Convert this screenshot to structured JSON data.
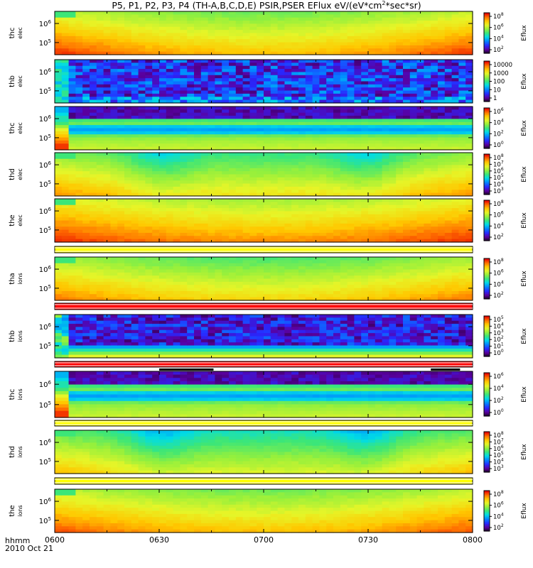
{
  "chart_data": {
    "type": "heatmap",
    "title": "P5, P1, P2, P3, P4 (TH-A,B,C,D,E) PSIR,PSER EFlux eV/(eV*cm",
    "title_sup": "2",
    "title_tail": "*sec*sr)",
    "x_axis": {
      "label_line1": "hhmm",
      "label_line2": "2010 Oct 21",
      "ticks": [
        "0600",
        "0630",
        "0700",
        "0730",
        "0800"
      ],
      "range": [
        "06:00",
        "08:00"
      ]
    },
    "colorbar_label": "Eflux",
    "panels": [
      {
        "id": "thd_elec_a",
        "name": "thc",
        "sub": "elec",
        "yticks": [
          "10^6",
          "10^5"
        ],
        "cb_ticks": [
          "10^8",
          "10^6",
          "10^4",
          "10^2"
        ],
        "pattern": "smooth",
        "base": 0.62,
        "edge_boost": 0.15
      },
      {
        "id": "thb_elec",
        "name": "thb",
        "sub": "elec",
        "yticks": [
          "10^6",
          "10^5"
        ],
        "cb_ticks": [
          "10000",
          "1000",
          "100",
          "10",
          "1"
        ],
        "pattern": "noise"
      },
      {
        "id": "thc_elec",
        "name": "thc",
        "sub": "elec",
        "yticks": [
          "10^6",
          "10^5"
        ],
        "cb_ticks": [
          "10^6",
          "10^4",
          "10^2",
          "10^0"
        ],
        "pattern": "bands"
      },
      {
        "id": "thd_elec",
        "name": "thd",
        "sub": "elec",
        "yticks": [
          "10^6",
          "10^5"
        ],
        "cb_ticks": [
          "10^8",
          "10^7",
          "10^6",
          "10^5",
          "10^4",
          "10^3"
        ],
        "pattern": "smooth",
        "base": 0.55,
        "edge_boost": 0.12,
        "green_patches": true
      },
      {
        "id": "the_elec",
        "name": "the",
        "sub": "elec",
        "yticks": [
          "10^6",
          "10^5"
        ],
        "cb_ticks": [
          "10^8",
          "10^6",
          "10^4",
          "10^2"
        ],
        "pattern": "smooth",
        "base": 0.68,
        "edge_boost": 0.1
      },
      {
        "id": "tha_ions",
        "name": "tha",
        "sub": "ions",
        "yticks": [
          "10^6",
          "10^5"
        ],
        "cb_ticks": [
          "10^8",
          "10^6",
          "10^4",
          "10^2"
        ],
        "pattern": "smooth",
        "base": 0.58,
        "edge_boost": 0.12
      },
      {
        "id": "thb_ions",
        "name": "thb",
        "sub": "ions",
        "yticks": [
          "10^6",
          "10^5"
        ],
        "cb_ticks": [
          "10^5",
          "10^4",
          "10^3",
          "10^2",
          "10^1",
          "10^0"
        ],
        "pattern": "noise_bands"
      },
      {
        "id": "thc_ions",
        "name": "thc",
        "sub": "ions",
        "yticks": [
          "10^6",
          "10^5"
        ],
        "cb_ticks": [
          "10^6",
          "10^4",
          "10^2",
          "10^0"
        ],
        "pattern": "bands"
      },
      {
        "id": "thd_ions",
        "name": "thd",
        "sub": "ions",
        "yticks": [
          "10^6",
          "10^5"
        ],
        "cb_ticks": [
          "10^8",
          "10^7",
          "10^6",
          "10^5",
          "10^4",
          "10^3"
        ],
        "pattern": "smooth",
        "base": 0.5,
        "edge_boost": 0.12,
        "green_patches": true
      },
      {
        "id": "the_ions",
        "name": "the",
        "sub": "ions",
        "yticks": [
          "10^6",
          "10^5"
        ],
        "cb_ticks": [
          "10^8",
          "10^6",
          "10^4",
          "10^2"
        ],
        "pattern": "smooth",
        "base": 0.62,
        "edge_boost": 0.12
      }
    ],
    "strips": [
      {
        "after": "the_elec",
        "color": "#ffff00"
      },
      {
        "after": "tha_ions",
        "color": "#ff0000"
      },
      {
        "after": "thb_ions",
        "color": "#ff0000",
        "black_bars": [
          [
            0.25,
            0.38
          ],
          [
            0.9,
            0.97
          ]
        ]
      },
      {
        "after": "thc_ions",
        "color": "#ffff00"
      },
      {
        "after": "thd_ions",
        "color": "#ffff00"
      }
    ]
  }
}
